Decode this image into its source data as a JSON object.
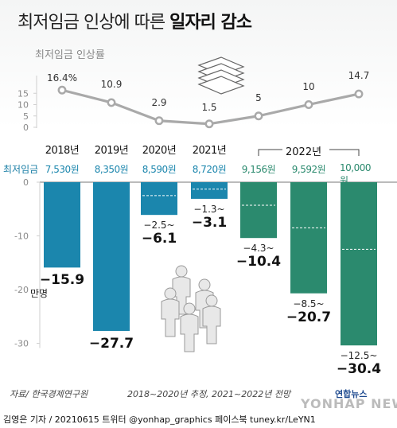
{
  "title": {
    "normal": "최저임금 인상에 따른 ",
    "bold": "일자리 감소"
  },
  "colors": {
    "blue": "#1b86ad",
    "green": "#2b8a6e",
    "line": "#a9a9a9"
  },
  "labels": {
    "rate_label": "최저임금 인상률",
    "wage_label": "최저임금",
    "group_2022": "2022년",
    "unit": "만명",
    "source": "자료/ 한국경제연구원",
    "note": "2018~2020년 추정, 2021~2022년 전망",
    "credit": "김영은 기자 / 20210615   트위터 @yonhap_graphics  페이스북 tuney.kr/LeYN1",
    "logo": "연합뉴스",
    "watermark": "YONHAP NEWS"
  },
  "chart_data": [
    {
      "type": "line",
      "title": "최저임금 인상률",
      "unit": "%",
      "x": [
        "2018년",
        "2019년",
        "2020년",
        "2021년",
        "2022년 a",
        "2022년 b",
        "2022년 c"
      ],
      "y": [
        16.4,
        10.9,
        2.9,
        1.5,
        5,
        10,
        14.7
      ],
      "value_labels": [
        "16.4%",
        "10.9",
        "2.9",
        "1.5",
        "5",
        "10",
        "14.7"
      ],
      "ylim": [
        0,
        17
      ],
      "yticks": [
        0,
        5,
        10,
        15
      ],
      "grid": false
    },
    {
      "type": "bar",
      "title": "최저임금 인상에 따른 일자리 감소",
      "unit": "만명",
      "categories": [
        "2018년",
        "2019년",
        "2020년",
        "2021년",
        "2022년",
        "2022년",
        "2022년"
      ],
      "wages": [
        "7,530원",
        "8,350원",
        "8,590원",
        "8,720원",
        "9,156원",
        "9,592원",
        "10,000원"
      ],
      "values": [
        -15.9,
        -27.7,
        -6.1,
        -3.1,
        -10.4,
        -20.7,
        -30.4
      ],
      "value_labels": [
        "−15.9",
        "−27.7",
        "−6.1",
        "−3.1",
        "−10.4",
        "−20.7",
        "−30.4"
      ],
      "range_low": [
        null,
        null,
        -2.5,
        -1.3,
        -4.3,
        -8.5,
        -12.5
      ],
      "range_labels": [
        "",
        "",
        "−2.5~",
        "−1.3~",
        "−4.3~",
        "−8.5~",
        "−12.5~"
      ],
      "series_colors": [
        "blue",
        "blue",
        "blue",
        "blue",
        "green",
        "green",
        "green"
      ],
      "ylim": [
        -32,
        0
      ],
      "yticks": [
        0,
        -10,
        -20,
        -30
      ],
      "ytick_labels": [
        "0",
        "-10",
        "-20",
        "-30"
      ],
      "grid": false
    }
  ]
}
